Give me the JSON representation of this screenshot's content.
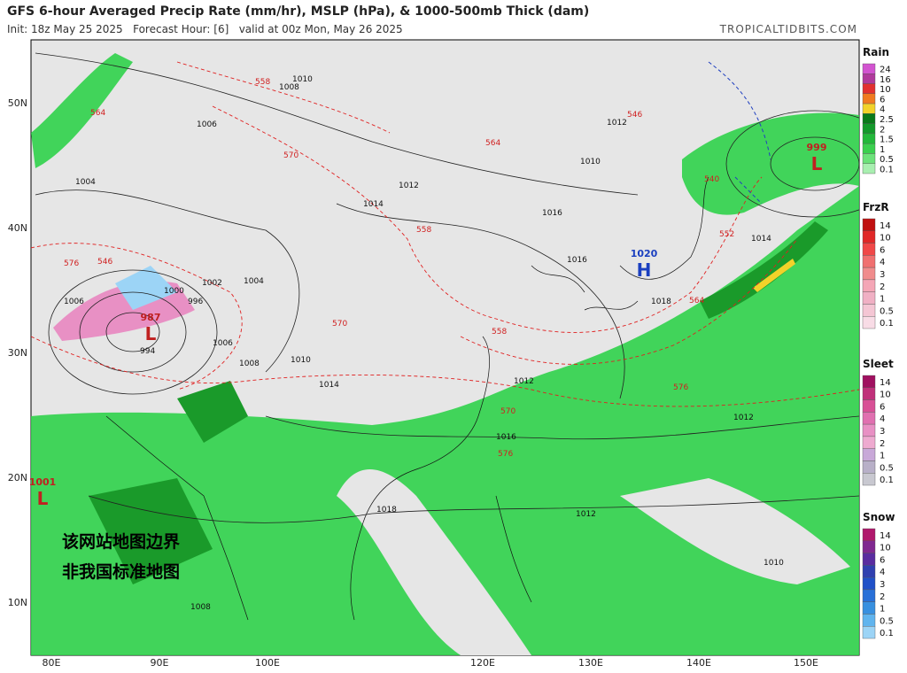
{
  "header": {
    "title": "GFS 6-hour Averaged Precip Rate (mm/hr), MSLP (hPa), & 1000-500mb Thick (dam)",
    "subtitle": "Init: 18z May 25 2025   Forecast Hour: [6]   valid at 00z Mon, May 26 2025",
    "site": "TROPICALTIDBITS.COM"
  },
  "map": {
    "lat_labels": [
      "50N",
      "40N",
      "30N",
      "20N",
      "10N"
    ],
    "lon_labels": [
      "80E",
      "90E",
      "100E",
      "120E",
      "130E",
      "140E",
      "150E"
    ],
    "pressure_centers": [
      {
        "letter": "H",
        "value": "1020"
      },
      {
        "letter": "L",
        "value": "987"
      },
      {
        "letter": "L",
        "value": "999"
      },
      {
        "letter": "L",
        "value": "1001"
      }
    ],
    "isobar_labels": [
      "1010",
      "1008",
      "1006",
      "1004",
      "1012",
      "1014",
      "1016",
      "1018",
      "1010",
      "1012",
      "1016",
      "1014",
      "1002",
      "1000",
      "996",
      "994",
      "1006",
      "1008",
      "1012",
      "1014",
      "1010",
      "1004",
      "1006",
      "1012",
      "1016",
      "1018",
      "1012",
      "1010",
      "1008"
    ],
    "thickness_labels": [
      "558",
      "564",
      "570",
      "576",
      "564",
      "558",
      "546",
      "540",
      "552",
      "564",
      "570",
      "576",
      "558",
      "570",
      "576",
      "546"
    ],
    "watermark": [
      "该网站地图边界",
      "非我国标准地图"
    ]
  },
  "legend": [
    {
      "title": "Rain",
      "labels": [
        "24",
        "16",
        "10",
        "6",
        "4",
        "2.5",
        "2",
        "1.5",
        "1",
        "0.5",
        "0.1"
      ],
      "colors": [
        "#d254d0",
        "#b03a9c",
        "#e23030",
        "#f07a20",
        "#f2d22a",
        "#0a7a1a",
        "#13992a",
        "#22b83a",
        "#3ad04e",
        "#6ce27a",
        "#a8efb0"
      ]
    },
    {
      "title": "FrzR",
      "labels": [
        "14",
        "10",
        "6",
        "4",
        "3",
        "2",
        "1",
        "0.5",
        "0.1"
      ],
      "colors": [
        "#c01010",
        "#e02828",
        "#f04848",
        "#f07070",
        "#f08c8c",
        "#f4a6b6",
        "#f0b0c4",
        "#f4c6d4",
        "#f8dce6"
      ]
    },
    {
      "title": "Sleet",
      "labels": [
        "14",
        "10",
        "6",
        "4",
        "3",
        "2",
        "1",
        "0.5",
        "0.1"
      ],
      "colors": [
        "#a01060",
        "#c0307a",
        "#d85096",
        "#e070b0",
        "#e890c4",
        "#eeaad0",
        "#c8a8d8",
        "#b8b0c8",
        "#c8c8d0"
      ]
    },
    {
      "title": "Snow",
      "labels": [
        "14",
        "10",
        "6",
        "4",
        "3",
        "2",
        "1",
        "0.5",
        "0.1"
      ],
      "colors": [
        "#b0186c",
        "#802890",
        "#5a2ca0",
        "#3040b0",
        "#2050c8",
        "#2870d8",
        "#3890e0",
        "#60b4ee",
        "#9cd4f6"
      ]
    }
  ]
}
